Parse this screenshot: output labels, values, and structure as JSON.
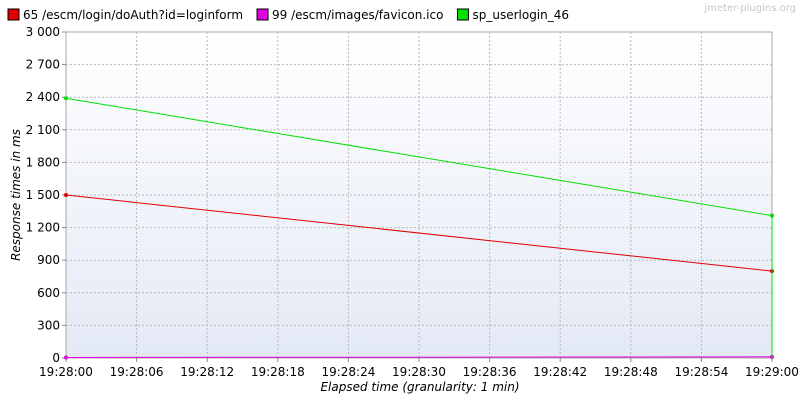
{
  "watermark": "jmeter-plugins.org",
  "chart_data": {
    "type": "line",
    "title": "",
    "xlabel": "Elapsed time (granularity: 1 min)",
    "ylabel": "Response times in ms",
    "x": [
      "19:28:00",
      "19:29:00"
    ],
    "xticks": [
      "19:28:00",
      "19:28:06",
      "19:28:12",
      "19:28:18",
      "19:28:24",
      "19:28:30",
      "19:28:36",
      "19:28:42",
      "19:28:48",
      "19:28:54",
      "19:29:00"
    ],
    "yticks": [
      "0",
      "300",
      "600",
      "900",
      "1 200",
      "1 500",
      "1 800",
      "2 100",
      "2 400",
      "2 700",
      "3 000"
    ],
    "ylim": [
      0,
      3000
    ],
    "grid": true,
    "legend_position": "top",
    "series": [
      {
        "name": "65 /escm/login/doAuth?id=loginform",
        "color": "#e00000",
        "values": [
          1500,
          800
        ]
      },
      {
        "name": "99 /escm/images/favicon.ico",
        "color": "#e000e0",
        "values": [
          5,
          10
        ]
      },
      {
        "name": "sp_userlogin_46",
        "color": "#00e000",
        "values": [
          2390,
          1310
        ]
      }
    ]
  }
}
